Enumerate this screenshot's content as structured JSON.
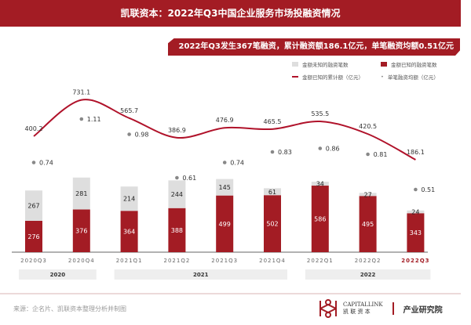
{
  "header": {
    "title": "凯联资本：2022年Q3中国企业服务市场投融资情况"
  },
  "banner": "2022年Q3发生367笔融资，累计融资额186.1亿元，单笔融资均额0.51亿元",
  "colors": {
    "brand": "#a31c24",
    "unknown": "#dedede",
    "line": "#b0122a",
    "dot": "#888888"
  },
  "chart_data": {
    "type": "bar+line",
    "categories": [
      "2020Q3",
      "2020Q4",
      "2021Q1",
      "2021Q2",
      "2021Q3",
      "2021Q4",
      "2022Q1",
      "2022Q2",
      "2022Q3"
    ],
    "year_groups": [
      {
        "label": "2020",
        "span": 2
      },
      {
        "label": "2021",
        "span": 4
      },
      {
        "label": "2022",
        "span": 3
      }
    ],
    "highlight_category": "2022Q3",
    "series": [
      {
        "name": "金额已知的融资笔数",
        "type": "stacked-bar",
        "values": [
          276,
          376,
          364,
          388,
          499,
          502,
          586,
          495,
          343
        ]
      },
      {
        "name": "金额未知的融资笔数",
        "type": "stacked-bar",
        "values": [
          267,
          281,
          214,
          244,
          145,
          61,
          34,
          27,
          24
        ]
      },
      {
        "name": "金额已知的累计额（亿元）",
        "type": "line",
        "values": [
          400.2,
          731.1,
          565.7,
          386.9,
          476.9,
          465.5,
          535.5,
          420.5,
          186.1
        ]
      },
      {
        "name": "单笔融资均额（亿元）",
        "type": "scatter",
        "values": [
          0.74,
          1.11,
          0.98,
          0.61,
          0.74,
          0.83,
          0.86,
          0.81,
          0.51
        ]
      }
    ]
  },
  "footer": {
    "source": "来源：企名片、凯联资本整理分析并制图",
    "logo_en": "CAPITALLINK",
    "logo_cn": "凯 联 资 本",
    "institute": "产业研究院"
  }
}
